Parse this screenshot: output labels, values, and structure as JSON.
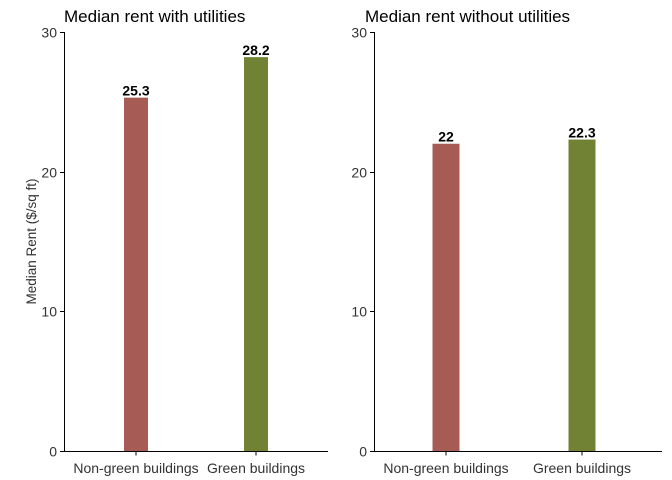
{
  "chart_data": [
    {
      "type": "bar",
      "title": "Median rent with utilities",
      "xlabel": "",
      "ylabel": "Median Rent ($/sq ft)",
      "ylim": [
        0,
        30
      ],
      "yticks": [
        0,
        10,
        20,
        30
      ],
      "categories": [
        "Non-green buildings",
        "Green buildings"
      ],
      "values": [
        25.3,
        28.2
      ],
      "data_labels": [
        "25.3",
        "28.2"
      ],
      "colors": [
        "#a65b54",
        "#718234"
      ],
      "grid": false
    },
    {
      "type": "bar",
      "title": "Median rent without utilities",
      "xlabel": "",
      "ylabel": "",
      "ylim": [
        0,
        30
      ],
      "yticks": [
        0,
        10,
        20,
        30
      ],
      "categories": [
        "Non-green buildings",
        "Green buildings"
      ],
      "values": [
        22,
        22.3
      ],
      "data_labels": [
        "22",
        "22.3"
      ],
      "colors": [
        "#a65b54",
        "#718234"
      ],
      "grid": false
    }
  ]
}
